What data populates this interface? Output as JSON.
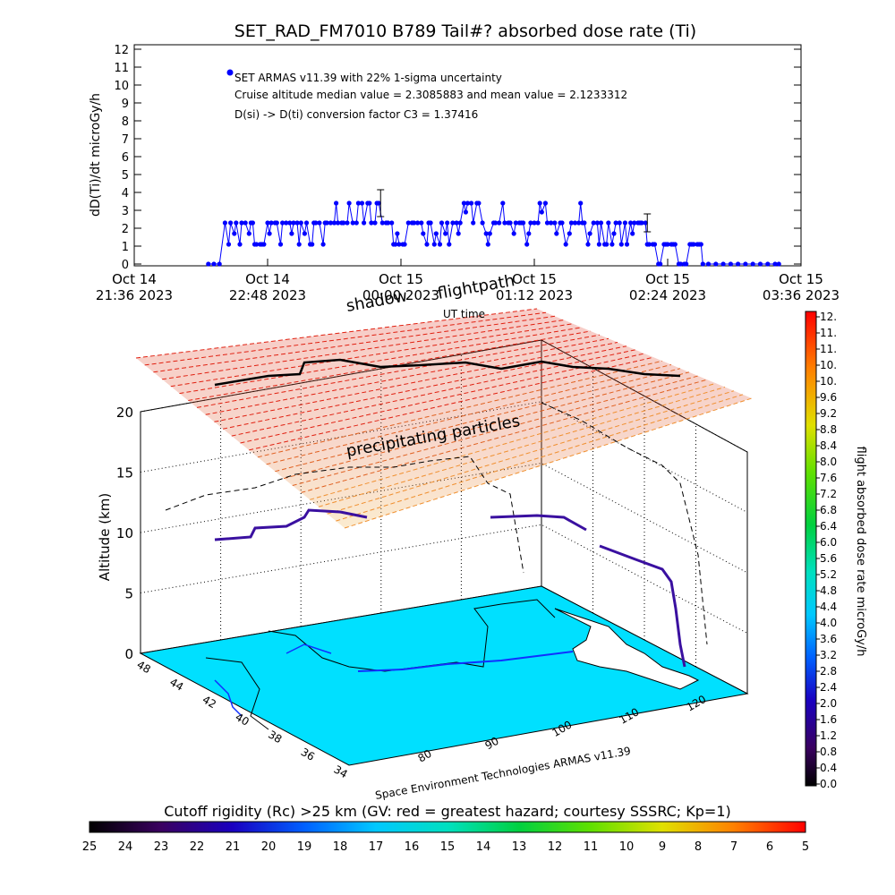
{
  "chart_data": [
    {
      "type": "scatter",
      "title": "SET_RAD_FM7010   B789 Tail#? absorbed dose rate (Ti)",
      "ylabel": "dD(Ti)/dt microGy/h",
      "xlabel": "",
      "ylim": [
        0,
        12
      ],
      "yticks": [
        0,
        1,
        2,
        3,
        4,
        5,
        6,
        7,
        8,
        9,
        10,
        11,
        12
      ],
      "xticks": [
        {
          "line1": "Oct 14",
          "line2": "21:36 2023"
        },
        {
          "line1": "Oct 14",
          "line2": "22:48 2023"
        },
        {
          "line1": "Oct 15",
          "line2": "00:00 2023"
        },
        {
          "line1": "Oct 15",
          "line2": "01:12 2023"
        },
        {
          "line1": "Oct 15",
          "line2": "02:24 2023"
        },
        {
          "line1": "Oct 15",
          "line2": "03:36 2023"
        }
      ],
      "xlim_minutes": [
        0,
        360
      ],
      "legend": {
        "series_name": "SET ARMAS v11.39 with 22% 1-sigma uncertainty",
        "line2": "Cruise altitude median value = 2.3085883 and mean value = 2.1233312",
        "line3": "D(si) -> D(ti) conversion factor C3 = 1.37416",
        "placement": "top-left"
      },
      "series": [
        {
          "name": "SET ARMAS v11.39 with 22% 1-sigma uncertainty",
          "color": "#0000ff",
          "points": [
            [
              40,
              0
            ],
            [
              43,
              0
            ],
            [
              46,
              0
            ],
            [
              49,
              2.3
            ],
            [
              51,
              1.1
            ],
            [
              52,
              2.3
            ],
            [
              54,
              1.7
            ],
            [
              55,
              2.3
            ],
            [
              57,
              1.1
            ],
            [
              58,
              2.3
            ],
            [
              60,
              2.3
            ],
            [
              62,
              1.7
            ],
            [
              63,
              2.3
            ],
            [
              64,
              2.3
            ],
            [
              65,
              1.1
            ],
            [
              66,
              1.1
            ],
            [
              68,
              1.1
            ],
            [
              69,
              1.1
            ],
            [
              70,
              1.1
            ],
            [
              72,
              2.3
            ],
            [
              73,
              1.7
            ],
            [
              74,
              2.3
            ],
            [
              76,
              2.3
            ],
            [
              77,
              2.3
            ],
            [
              79,
              1.1
            ],
            [
              80,
              2.3
            ],
            [
              82,
              2.3
            ],
            [
              84,
              2.3
            ],
            [
              85,
              1.7
            ],
            [
              86,
              2.3
            ],
            [
              88,
              2.3
            ],
            [
              89,
              1.1
            ],
            [
              90,
              2.3
            ],
            [
              92,
              1.7
            ],
            [
              93,
              2.3
            ],
            [
              95,
              1.1
            ],
            [
              96,
              1.1
            ],
            [
              97,
              2.3
            ],
            [
              98,
              2.3
            ],
            [
              100,
              2.3
            ],
            [
              102,
              1.1
            ],
            [
              103,
              2.3
            ],
            [
              104,
              2.3
            ],
            [
              106,
              2.3
            ],
            [
              108,
              2.3
            ],
            [
              109,
              3.4
            ],
            [
              110,
              2.3
            ],
            [
              112,
              2.3
            ],
            [
              113,
              2.3
            ],
            [
              115,
              2.3
            ],
            [
              116,
              3.4
            ],
            [
              118,
              2.3
            ],
            [
              120,
              2.3
            ],
            [
              121,
              3.4
            ],
            [
              123,
              3.4
            ],
            [
              124,
              2.3
            ],
            [
              126,
              3.4
            ],
            [
              127,
              3.4
            ],
            [
              128,
              2.3
            ],
            [
              130,
              2.3
            ],
            [
              131,
              3.4
            ],
            [
              132,
              3.4
            ],
            [
              134,
              2.3
            ],
            [
              136,
              2.3
            ],
            [
              137,
              2.3
            ],
            [
              139,
              2.3
            ],
            [
              140,
              1.1
            ],
            [
              141,
              1.1
            ],
            [
              142,
              1.7
            ],
            [
              143,
              1.1
            ],
            [
              145,
              1.1
            ],
            [
              146,
              1.1
            ],
            [
              148,
              2.3
            ],
            [
              150,
              2.3
            ],
            [
              151,
              2.3
            ],
            [
              153,
              2.3
            ],
            [
              155,
              2.3
            ],
            [
              156,
              1.7
            ],
            [
              158,
              1.1
            ],
            [
              159,
              2.3
            ],
            [
              160,
              2.3
            ],
            [
              162,
              1.1
            ],
            [
              163,
              1.7
            ],
            [
              165,
              1.1
            ],
            [
              166,
              2.3
            ],
            [
              168,
              1.7
            ],
            [
              169,
              2.3
            ],
            [
              170,
              1.1
            ],
            [
              172,
              2.3
            ],
            [
              174,
              2.3
            ],
            [
              175,
              1.7
            ],
            [
              176,
              2.3
            ],
            [
              178,
              3.4
            ],
            [
              179,
              2.9
            ],
            [
              180,
              3.4
            ],
            [
              182,
              3.4
            ],
            [
              183,
              2.3
            ],
            [
              185,
              3.4
            ],
            [
              186,
              3.4
            ],
            [
              188,
              2.3
            ],
            [
              190,
              1.7
            ],
            [
              191,
              1.1
            ],
            [
              192,
              1.7
            ],
            [
              194,
              2.3
            ],
            [
              195,
              2.3
            ],
            [
              197,
              2.3
            ],
            [
              199,
              3.4
            ],
            [
              200,
              2.3
            ],
            [
              202,
              2.3
            ],
            [
              203,
              2.3
            ],
            [
              205,
              1.7
            ],
            [
              206,
              2.3
            ],
            [
              208,
              2.3
            ],
            [
              209,
              2.3
            ],
            [
              210,
              2.3
            ],
            [
              212,
              1.1
            ],
            [
              213,
              1.7
            ],
            [
              214,
              2.3
            ],
            [
              216,
              2.3
            ],
            [
              218,
              2.3
            ],
            [
              219,
              3.4
            ],
            [
              220,
              2.9
            ],
            [
              222,
              3.4
            ],
            [
              223,
              2.3
            ],
            [
              225,
              2.3
            ],
            [
              227,
              2.3
            ],
            [
              228,
              1.7
            ],
            [
              230,
              2.3
            ],
            [
              231,
              2.3
            ],
            [
              233,
              1.1
            ],
            [
              235,
              1.7
            ],
            [
              236,
              2.3
            ],
            [
              238,
              2.3
            ],
            [
              240,
              2.3
            ],
            [
              241,
              3.4
            ],
            [
              242,
              2.3
            ],
            [
              243,
              2.3
            ],
            [
              245,
              1.1
            ],
            [
              246,
              1.7
            ],
            [
              248,
              2.3
            ],
            [
              250,
              2.3
            ],
            [
              251,
              1.1
            ],
            [
              252,
              2.3
            ],
            [
              254,
              1.1
            ],
            [
              255,
              1.1
            ],
            [
              256,
              2.3
            ],
            [
              258,
              1.1
            ],
            [
              259,
              1.7
            ],
            [
              260,
              2.3
            ],
            [
              262,
              2.3
            ],
            [
              263,
              1.1
            ],
            [
              265,
              2.3
            ],
            [
              266,
              1.1
            ],
            [
              268,
              2.3
            ],
            [
              269,
              1.7
            ],
            [
              270,
              2.3
            ],
            [
              272,
              2.3
            ],
            [
              273,
              2.3
            ],
            [
              274,
              2.3
            ],
            [
              276,
              2.3
            ],
            [
              277,
              1.1
            ],
            [
              278,
              1.1
            ],
            [
              280,
              1.1
            ],
            [
              281,
              1.1
            ],
            [
              283,
              0
            ],
            [
              284,
              0
            ],
            [
              286,
              1.1
            ],
            [
              287,
              1.1
            ],
            [
              288,
              1.1
            ],
            [
              290,
              1.1
            ],
            [
              291,
              1.1
            ],
            [
              292,
              1.1
            ],
            [
              294,
              0
            ],
            [
              295,
              0
            ],
            [
              297,
              0
            ],
            [
              298,
              0
            ],
            [
              300,
              1.1
            ],
            [
              301,
              1.1
            ],
            [
              302,
              1.1
            ],
            [
              304,
              1.1
            ],
            [
              305,
              1.1
            ],
            [
              306,
              1.1
            ],
            [
              307,
              0
            ],
            [
              310,
              0
            ],
            [
              314,
              0
            ],
            [
              318,
              0
            ],
            [
              322,
              0
            ],
            [
              326,
              0
            ],
            [
              330,
              0
            ],
            [
              334,
              0
            ],
            [
              338,
              0
            ],
            [
              342,
              0
            ],
            [
              346,
              0
            ],
            [
              348,
              0
            ]
          ]
        }
      ],
      "error_bars": [
        {
          "x": 133,
          "y": 3.4,
          "err": 0.75
        },
        {
          "x": 277,
          "y": 2.3,
          "err": 0.5
        }
      ],
      "grid": false
    },
    {
      "type": "3d-flightpath",
      "labels": {
        "shadow": "shadow",
        "flightpath": "flightpath",
        "ut_time": "UT time",
        "precipitating": "precipitating particles",
        "credit": "Space Environment Technologies ARMAS v11.39"
      },
      "zlabel": "Altitude (km)",
      "zticks": [
        "0",
        "5",
        "10",
        "15",
        "20"
      ],
      "lat_ticks": [
        "48",
        "44",
        "42",
        "40",
        "38",
        "36",
        "34"
      ],
      "lon_ticks": [
        "80",
        "90",
        "100",
        "110",
        "120"
      ],
      "grid": true
    }
  ],
  "colorbar_dose": {
    "title": "flight absorbed dose rate microGy/h",
    "labels": [
      "0.0",
      "0.4",
      "0.8",
      "1.2",
      "1.6",
      "2.0",
      "2.4",
      "2.8",
      "3.2",
      "3.6",
      "4.0",
      "4.4",
      "4.8",
      "5.2",
      "5.6",
      "6.0",
      "6.4",
      "6.8",
      "7.2",
      "7.6",
      "8.0",
      "8.4",
      "8.8",
      "9.2",
      "9.6",
      "10.",
      "10.",
      "11.",
      "11.",
      "12."
    ]
  },
  "colorbar_rigidity": {
    "title": "Cutoff rigidity (Rc) >25 km (GV: red = greatest hazard; courtesy SSSRC; Kp=1)",
    "labels": [
      "25",
      "24",
      "23",
      "22",
      "21",
      "20",
      "19",
      "18",
      "17",
      "16",
      "15",
      "14",
      "13",
      "12",
      "11",
      "10",
      "9",
      "8",
      "7",
      "6",
      "5"
    ]
  }
}
